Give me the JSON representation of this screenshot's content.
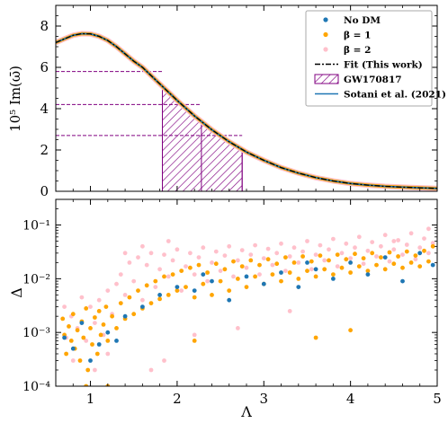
{
  "chart_data": [
    {
      "type": "line",
      "ylabel": "10⁵ Im(ω̄)",
      "xlim": [
        0.6,
        5.0
      ],
      "ylim": [
        0,
        9
      ],
      "xticks": [
        1,
        2,
        3,
        4,
        5
      ],
      "xticklabels": [
        "",
        "",
        "",
        "",
        ""
      ],
      "yticks": [
        0,
        2,
        4,
        6,
        8
      ],
      "yticklabels": [
        "0",
        "2",
        "4",
        "6",
        "8"
      ],
      "legend_position": "top-right",
      "legend": [
        {
          "label": "No DM",
          "kind": "dot",
          "color": "#1f77b4"
        },
        {
          "label": "β = 1",
          "kind": "dot",
          "color": "#ffa500"
        },
        {
          "label": "β = 2",
          "kind": "dot",
          "color": "#ffc0cb"
        },
        {
          "label": "Fit (This work)",
          "kind": "dashdot",
          "color": "#000000"
        },
        {
          "label": "GW170817",
          "kind": "hatch",
          "color": "#800080"
        },
        {
          "label": "Sotani et al. (2021)",
          "kind": "line",
          "color": "#1f77b4"
        }
      ],
      "curve": {
        "x": [
          0.6,
          0.7,
          0.8,
          0.9,
          1.0,
          1.1,
          1.2,
          1.3,
          1.4,
          1.5,
          1.6,
          1.7,
          1.8,
          1.9,
          2.0,
          2.2,
          2.4,
          2.6,
          2.8,
          3.0,
          3.2,
          3.4,
          3.6,
          3.8,
          4.0,
          4.2,
          4.4,
          4.6,
          4.8,
          5.0
        ],
        "y": [
          7.2,
          7.38,
          7.55,
          7.63,
          7.62,
          7.5,
          7.3,
          7.0,
          6.65,
          6.3,
          6.0,
          5.6,
          5.2,
          4.8,
          4.4,
          3.65,
          2.98,
          2.4,
          1.9,
          1.5,
          1.15,
          0.88,
          0.66,
          0.5,
          0.38,
          0.3,
          0.24,
          0.2,
          0.17,
          0.14
        ]
      },
      "gw170817": {
        "lambda_min": 1.83,
        "lambda_central": 2.28,
        "lambda_max": 2.75,
        "freq_at_min": 5.8,
        "freq_at_central": 4.2,
        "freq_at_max": 2.7
      }
    },
    {
      "type": "scatter",
      "xlabel": "Λ",
      "ylabel": "Δ",
      "xlim": [
        0.6,
        5.0
      ],
      "ylim": [
        0.0001,
        0.3
      ],
      "yscale": "log",
      "xticks": [
        1,
        2,
        3,
        4,
        5
      ],
      "xticklabels": [
        "1",
        "2",
        "3",
        "4",
        "5"
      ],
      "yticks": [
        0.0001,
        0.001,
        0.01,
        0.1
      ],
      "yticklabels": [
        "10⁻⁴",
        "10⁻³",
        "10⁻²",
        "10⁻¹"
      ],
      "series": [
        {
          "name": "β = 2",
          "color": "#ffc0cb",
          "points": [
            [
              0.7,
              0.003
            ],
            [
              0.72,
              0.0008
            ],
            [
              0.78,
              0.002
            ],
            [
              0.85,
              0.0012
            ],
            [
              0.9,
              0.0045
            ],
            [
              0.95,
              0.0007
            ],
            [
              1.0,
              0.003
            ],
            [
              1.05,
              0.0015
            ],
            [
              1.1,
              0.004
            ],
            [
              1.15,
              0.0009
            ],
            [
              1.2,
              0.006
            ],
            [
              1.25,
              0.0022
            ],
            [
              1.3,
              0.008
            ],
            [
              1.35,
              0.012
            ],
            [
              1.4,
              0.005
            ],
            [
              1.45,
              0.02
            ],
            [
              1.5,
              0.009
            ],
            [
              1.55,
              0.025
            ],
            [
              1.6,
              0.004
            ],
            [
              1.65,
              0.018
            ],
            [
              1.7,
              0.03
            ],
            [
              1.75,
              0.007
            ],
            [
              1.8,
              0.015
            ],
            [
              1.85,
              0.028
            ],
            [
              1.9,
              0.011
            ],
            [
              1.95,
              0.022
            ],
            [
              2.0,
              0.035
            ],
            [
              2.05,
              0.006
            ],
            [
              2.1,
              0.017
            ],
            [
              2.15,
              0.03
            ],
            [
              2.2,
              0.012
            ],
            [
              2.25,
              0.025
            ],
            [
              2.3,
              0.038
            ],
            [
              2.35,
              0.009
            ],
            [
              2.4,
              0.02
            ],
            [
              2.45,
              0.032
            ],
            [
              2.5,
              0.014
            ],
            [
              2.55,
              0.027
            ],
            [
              2.6,
              0.04
            ],
            [
              2.65,
              0.011
            ],
            [
              2.7,
              0.022
            ],
            [
              2.75,
              0.034
            ],
            [
              2.8,
              0.016
            ],
            [
              2.85,
              0.028
            ],
            [
              2.9,
              0.042
            ],
            [
              2.95,
              0.012
            ],
            [
              3.0,
              0.024
            ],
            [
              3.05,
              0.036
            ],
            [
              3.1,
              0.018
            ],
            [
              3.15,
              0.03
            ],
            [
              3.2,
              0.045
            ],
            [
              3.25,
              0.014
            ],
            [
              3.3,
              0.026
            ],
            [
              3.35,
              0.038
            ],
            [
              3.4,
              0.02
            ],
            [
              3.45,
              0.032
            ],
            [
              3.5,
              0.05
            ],
            [
              3.55,
              0.015
            ],
            [
              3.6,
              0.028
            ],
            [
              3.65,
              0.042
            ],
            [
              3.7,
              0.022
            ],
            [
              3.75,
              0.035
            ],
            [
              3.8,
              0.055
            ],
            [
              3.85,
              0.017
            ],
            [
              3.9,
              0.03
            ],
            [
              3.95,
              0.045
            ],
            [
              4.0,
              0.024
            ],
            [
              4.05,
              0.038
            ],
            [
              4.1,
              0.06
            ],
            [
              4.15,
              0.019
            ],
            [
              4.2,
              0.033
            ],
            [
              4.25,
              0.048
            ],
            [
              4.3,
              0.026
            ],
            [
              4.35,
              0.04
            ],
            [
              4.4,
              0.065
            ],
            [
              4.45,
              0.021
            ],
            [
              4.5,
              0.035
            ],
            [
              4.55,
              0.052
            ],
            [
              4.6,
              0.028
            ],
            [
              4.65,
              0.043
            ],
            [
              4.7,
              0.07
            ],
            [
              4.75,
              0.023
            ],
            [
              4.8,
              0.038
            ],
            [
              4.85,
              0.056
            ],
            [
              4.9,
              0.03
            ],
            [
              4.95,
              0.046
            ],
            [
              2.2,
              0.0009
            ],
            [
              2.7,
              0.0012
            ],
            [
              3.3,
              0.0025
            ],
            [
              4.5,
              0.05
            ],
            [
              4.9,
              0.085
            ],
            [
              1.6,
              0.04
            ],
            [
              1.4,
              0.03
            ],
            [
              1.9,
              0.05
            ],
            [
              0.8,
              0.0003
            ],
            [
              1.05,
              0.0002
            ],
            [
              1.2,
              0.0004
            ],
            [
              1.7,
              0.0002
            ],
            [
              1.85,
              0.0003
            ]
          ]
        },
        {
          "name": "β = 1",
          "color": "#ffa500",
          "points": [
            [
              0.68,
              0.0018
            ],
            [
              0.7,
              0.0009
            ],
            [
              0.72,
              0.0004
            ],
            [
              0.75,
              0.0013
            ],
            [
              0.78,
              0.0007
            ],
            [
              0.8,
              0.0022
            ],
            [
              0.82,
              0.0005
            ],
            [
              0.85,
              0.0011
            ],
            [
              0.88,
              0.0003
            ],
            [
              0.9,
              0.0016
            ],
            [
              0.92,
              0.0008
            ],
            [
              0.95,
              0.0028
            ],
            [
              0.97,
              0.0002
            ],
            [
              1.0,
              0.0012
            ],
            [
              1.02,
              0.0006
            ],
            [
              1.05,
              0.0019
            ],
            [
              1.08,
              0.0004
            ],
            [
              1.1,
              0.0025
            ],
            [
              1.12,
              0.0009
            ],
            [
              1.15,
              0.0014
            ],
            [
              1.18,
              0.003
            ],
            [
              1.2,
              0.0007
            ],
            [
              1.25,
              0.002
            ],
            [
              1.3,
              0.0012
            ],
            [
              1.35,
              0.0035
            ],
            [
              1.4,
              0.0018
            ],
            [
              1.45,
              0.0045
            ],
            [
              1.5,
              0.0022
            ],
            [
              1.55,
              0.006
            ],
            [
              1.6,
              0.0028
            ],
            [
              1.65,
              0.0075
            ],
            [
              1.7,
              0.0035
            ],
            [
              1.75,
              0.009
            ],
            [
              1.8,
              0.0042
            ],
            [
              1.85,
              0.011
            ],
            [
              1.9,
              0.005
            ],
            [
              1.95,
              0.012
            ],
            [
              2.0,
              0.006
            ],
            [
              2.05,
              0.014
            ],
            [
              2.1,
              0.007
            ],
            [
              2.15,
              0.016
            ],
            [
              2.2,
              0.0045
            ],
            [
              2.25,
              0.018
            ],
            [
              2.3,
              0.008
            ],
            [
              2.35,
              0.013
            ],
            [
              2.4,
              0.005
            ],
            [
              2.45,
              0.019
            ],
            [
              2.5,
              0.009
            ],
            [
              2.55,
              0.015
            ],
            [
              2.6,
              0.006
            ],
            [
              2.65,
              0.021
            ],
            [
              2.7,
              0.01
            ],
            [
              2.75,
              0.017
            ],
            [
              2.8,
              0.007
            ],
            [
              2.85,
              0.022
            ],
            [
              2.9,
              0.011
            ],
            [
              2.95,
              0.018
            ],
            [
              3.0,
              0.008
            ],
            [
              3.05,
              0.023
            ],
            [
              3.1,
              0.012
            ],
            [
              3.15,
              0.019
            ],
            [
              3.2,
              0.009
            ],
            [
              3.25,
              0.025
            ],
            [
              3.3,
              0.013
            ],
            [
              3.35,
              0.02
            ],
            [
              3.4,
              0.01
            ],
            [
              3.45,
              0.026
            ],
            [
              3.5,
              0.014
            ],
            [
              3.55,
              0.021
            ],
            [
              3.6,
              0.011
            ],
            [
              3.65,
              0.027
            ],
            [
              3.7,
              0.015
            ],
            [
              3.75,
              0.022
            ],
            [
              3.8,
              0.012
            ],
            [
              3.85,
              0.028
            ],
            [
              3.9,
              0.016
            ],
            [
              3.95,
              0.023
            ],
            [
              4.0,
              0.013
            ],
            [
              4.05,
              0.029
            ],
            [
              4.1,
              0.017
            ],
            [
              4.15,
              0.024
            ],
            [
              4.2,
              0.014
            ],
            [
              4.25,
              0.03
            ],
            [
              4.3,
              0.018
            ],
            [
              4.35,
              0.025
            ],
            [
              4.4,
              0.015
            ],
            [
              4.45,
              0.031
            ],
            [
              4.5,
              0.019
            ],
            [
              4.55,
              0.026
            ],
            [
              4.6,
              0.016
            ],
            [
              4.65,
              0.032
            ],
            [
              4.7,
              0.02
            ],
            [
              4.75,
              0.027
            ],
            [
              4.8,
              0.017
            ],
            [
              4.85,
              0.033
            ],
            [
              4.9,
              0.021
            ],
            [
              4.95,
              0.04
            ],
            [
              3.6,
              0.0008
            ],
            [
              4.0,
              0.0011
            ],
            [
              2.2,
              0.0007
            ],
            [
              1.2,
              0.0001
            ],
            [
              0.95,
              0.0001
            ]
          ]
        },
        {
          "name": "No DM",
          "color": "#1f77b4",
          "points": [
            [
              0.7,
              0.0008
            ],
            [
              0.8,
              0.0005
            ],
            [
              0.9,
              0.0015
            ],
            [
              1.0,
              0.0003
            ],
            [
              1.1,
              0.0006
            ],
            [
              1.2,
              0.001
            ],
            [
              1.4,
              0.002
            ],
            [
              1.6,
              0.003
            ],
            [
              1.8,
              0.005
            ],
            [
              2.0,
              0.007
            ],
            [
              2.2,
              0.006
            ],
            [
              2.4,
              0.009
            ],
            [
              2.6,
              0.004
            ],
            [
              2.8,
              0.011
            ],
            [
              3.0,
              0.008
            ],
            [
              3.2,
              0.013
            ],
            [
              3.4,
              0.007
            ],
            [
              3.6,
              0.015
            ],
            [
              3.8,
              0.01
            ],
            [
              4.0,
              0.02
            ],
            [
              4.2,
              0.012
            ],
            [
              4.4,
              0.025
            ],
            [
              4.6,
              0.009
            ],
            [
              4.8,
              0.03
            ],
            [
              4.95,
              0.018
            ],
            [
              1.3,
              0.0007
            ],
            [
              2.3,
              0.012
            ],
            [
              3.5,
              0.02
            ]
          ]
        }
      ]
    }
  ]
}
